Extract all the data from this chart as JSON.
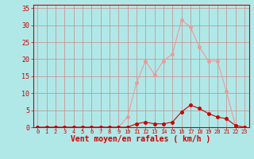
{
  "xlabel": "Vent moyen/en rafales ( km/h )",
  "bg_color": "#b0e8e8",
  "grid_color": "#cc8888",
  "x_values": [
    0,
    1,
    2,
    3,
    4,
    5,
    6,
    7,
    8,
    9,
    10,
    11,
    12,
    13,
    14,
    15,
    16,
    17,
    18,
    19,
    20,
    21,
    22,
    23
  ],
  "y_mean": [
    0,
    0,
    0,
    0,
    0,
    0,
    0,
    0,
    0,
    0,
    0,
    1,
    1.5,
    1,
    1,
    1.5,
    4.5,
    6.5,
    5.5,
    4,
    3,
    2.5,
    0.5,
    0
  ],
  "y_gust": [
    0,
    0,
    0,
    0,
    0,
    0,
    0,
    0,
    0,
    0,
    3,
    13,
    19.5,
    15.5,
    19.5,
    21.5,
    31.5,
    29.5,
    23.5,
    19.5,
    19.5,
    10.5,
    0.5,
    0
  ],
  "mean_color": "#cc0000",
  "gust_color": "#ee9999",
  "ylim": [
    0,
    36
  ],
  "yticks": [
    0,
    5,
    10,
    15,
    20,
    25,
    30,
    35
  ],
  "xlim": [
    -0.5,
    23.5
  ],
  "marker_size": 2.5,
  "tick_color": "#cc0000",
  "spine_color": "#cc0000",
  "xlabel_color": "#cc0000",
  "xlabel_fontsize": 7,
  "ytick_fontsize": 6,
  "xtick_fontsize": 5
}
